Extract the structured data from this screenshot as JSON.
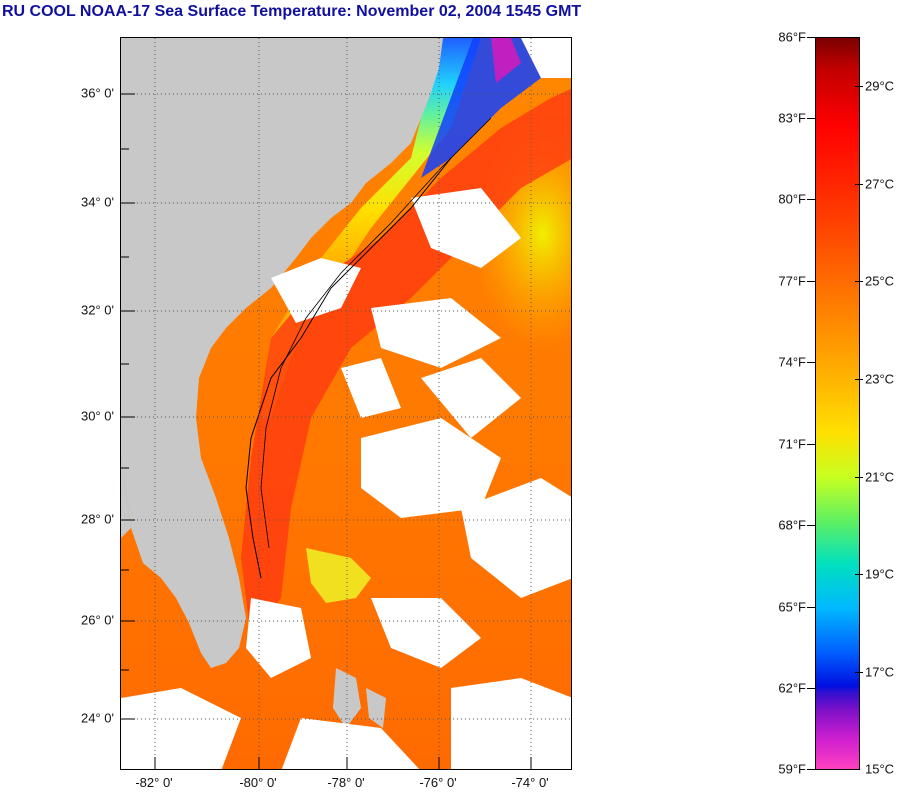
{
  "title": "RU COOL  NOAA-17  Sea Surface Temperature:  November 02, 2004 1545 GMT",
  "map": {
    "lat_labels": [
      "36° 0'",
      "34° 0'",
      "32° 0'",
      "30° 0'",
      "28° 0'",
      "26° 0'",
      "24° 0'"
    ],
    "lon_labels": [
      "-82° 0'",
      "-80° 0'",
      "-78° 0'",
      "-76° 0'",
      "-74° 0'"
    ],
    "colors": {
      "land": "#c8c8c8",
      "cloud": "#ffffff",
      "grid": "#555555"
    }
  },
  "colorbar": {
    "fahrenheit": [
      "86°F",
      "83°F",
      "80°F",
      "77°F",
      "74°F",
      "71°F",
      "68°F",
      "65°F",
      "62°F",
      "59°F"
    ],
    "celsius": [
      "29°C",
      "27°C",
      "25°C",
      "23°C",
      "21°C",
      "19°C",
      "17°C",
      "15°C"
    ],
    "range_f": [
      59,
      86
    ]
  }
}
